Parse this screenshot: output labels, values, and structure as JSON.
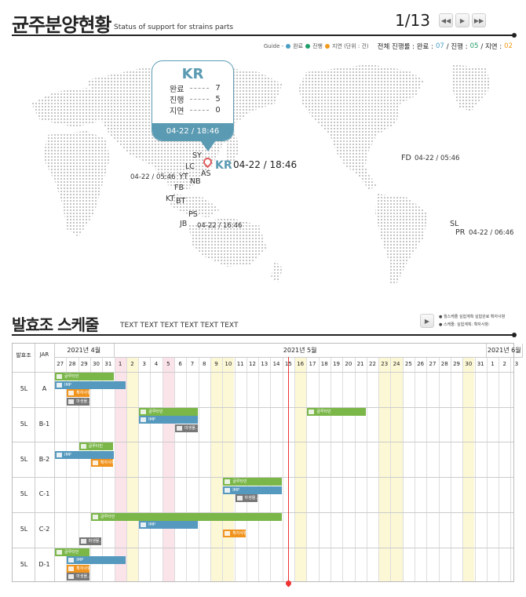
{
  "header": {
    "title": "균주분양현황",
    "subtitle": "Status of support for strains parts",
    "page": "1/13"
  },
  "legend": {
    "guide": "Guide -",
    "done": "완료",
    "progress": "진행",
    "delay": "지연 (단위 : 건)",
    "summary_label": "전체 진행률 : 완료 :",
    "done_val": "07",
    "progress_label": "/ 진행 :",
    "progress_val": "05",
    "delay_label": "/ 지연 :",
    "delay_val": "02",
    "colors": {
      "done": "#4a9fc4",
      "progress": "#1f9e69",
      "delay": "#f09a1a"
    }
  },
  "popup": {
    "code": "KR",
    "rows": [
      {
        "label": "완료",
        "value": "7"
      },
      {
        "label": "진행",
        "value": "5"
      },
      {
        "label": "지연",
        "value": "0"
      }
    ],
    "timestamp": "04-22 / 18:46"
  },
  "map": {
    "kr_label": "KR",
    "kr_time": "04-22 / 18:46",
    "locations": {
      "SY": "SY",
      "LC": "LC",
      "AS": "AS",
      "YT": "YT",
      "NB": "NB",
      "FB": "FB",
      "KT": "KT",
      "BT": "BT",
      "PS": "PS",
      "JB": "JB",
      "FD": "FD",
      "SL": "SL",
      "PR": "PR"
    },
    "times": {
      "yt": "04-22 / 05:46",
      "jb": "04-22 / 16:46",
      "fd": "04-22 / 05:46",
      "pr": "04-22 / 06:46"
    }
  },
  "schedule": {
    "title": "발효조 스케줄",
    "subtitle": "TEXT TEXT TEXT TEXT TEXT TEXT",
    "legend1": "● 월스케줄   실험계획   실험완료   확자사항",
    "legend2": "● 스케줄:   실험계획:   확자사항:"
  },
  "grid": {
    "h1": "발효조",
    "h2": "JAR",
    "months": [
      "2021년 4월",
      "2021년 5월",
      "2021년 6월"
    ],
    "days": [
      "27",
      "28",
      "29",
      "30",
      "31",
      "1",
      "2",
      "3",
      "4",
      "5",
      "6",
      "7",
      "8",
      "9",
      "10",
      "11",
      "12",
      "13",
      "14",
      "15",
      "16",
      "17",
      "18",
      "19",
      "20",
      "21",
      "22",
      "23",
      "24",
      "25",
      "26",
      "27",
      "28",
      "29",
      "30",
      "31",
      "1",
      "2",
      "3"
    ],
    "rows": [
      {
        "size": "5L",
        "jar": "A"
      },
      {
        "size": "5L",
        "jar": "B-1"
      },
      {
        "size": "5L",
        "jar": "B-2"
      },
      {
        "size": "5L",
        "jar": "C-1"
      },
      {
        "size": "5L",
        "jar": "C-2"
      },
      {
        "size": "5L",
        "jar": "D-1"
      }
    ],
    "bar_labels": {
      "green": "글루타민",
      "blue": "IMP",
      "orange": "확자사항",
      "gray": "마생물.."
    }
  }
}
